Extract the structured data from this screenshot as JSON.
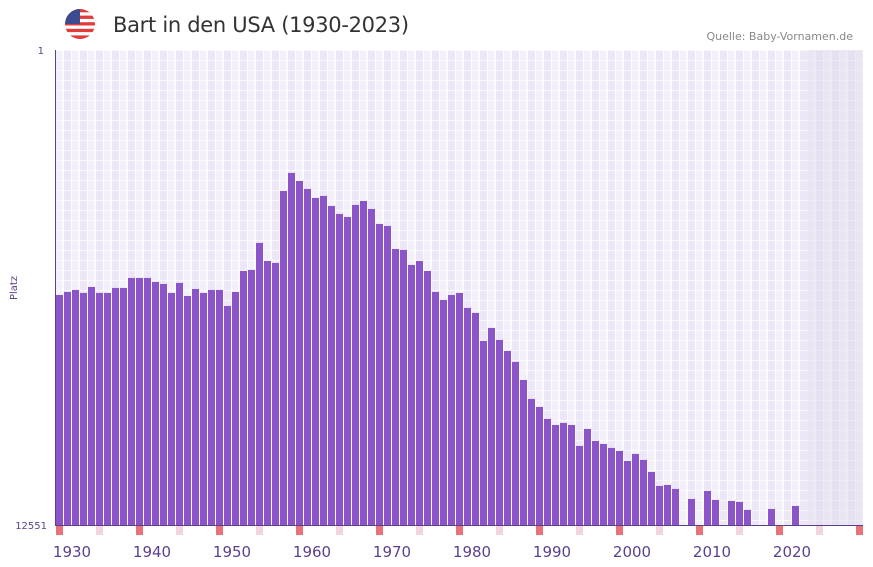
{
  "header": {
    "title": "Bart in den USA (1930-2023)",
    "source": "Quelle: Baby-Vornamen.de",
    "flag_icon": "us-flag-icon"
  },
  "colors": {
    "bar": "#8c55c7",
    "axis": "#5b3f8c",
    "marker_strong": "#e8737a",
    "marker_light": "#f3d5de",
    "forecast_shade": "#e2dded"
  },
  "chart_data": {
    "type": "bar",
    "title": "Bart in den USA (1930-2023)",
    "xlabel": "",
    "ylabel": "Platz",
    "y_top_label": "1",
    "y_bottom_label": "12551",
    "ylim": [
      1,
      12551
    ],
    "y_inverted": true,
    "xlim": [
      1930,
      2030
    ],
    "x_tick_labels": [
      "1930",
      "1940",
      "1950",
      "1960",
      "1970",
      "1980",
      "1990",
      "2000",
      "2010",
      "2020"
    ],
    "shaded_after_year": 2023,
    "grid": true,
    "years": [
      1930,
      1931,
      1932,
      1933,
      1934,
      1935,
      1936,
      1937,
      1938,
      1939,
      1940,
      1941,
      1942,
      1943,
      1944,
      1945,
      1946,
      1947,
      1948,
      1949,
      1950,
      1951,
      1952,
      1953,
      1954,
      1955,
      1956,
      1957,
      1958,
      1959,
      1960,
      1961,
      1962,
      1963,
      1964,
      1965,
      1966,
      1967,
      1968,
      1969,
      1970,
      1971,
      1972,
      1973,
      1974,
      1975,
      1976,
      1977,
      1978,
      1979,
      1980,
      1981,
      1982,
      1983,
      1984,
      1985,
      1986,
      1987,
      1988,
      1989,
      1990,
      1991,
      1992,
      1993,
      1994,
      1995,
      1996,
      1997,
      1998,
      1999,
      2000,
      2001,
      2002,
      2003,
      2004,
      2005,
      2006,
      2007,
      2008,
      2009,
      2010,
      2011,
      2012,
      2013,
      2014,
      2015,
      2016,
      2017,
      2018,
      2019,
      2020,
      2021,
      2022,
      2023
    ],
    "ranks": [
      6474,
      6394,
      6341,
      6420,
      6262,
      6420,
      6420,
      6288,
      6288,
      6024,
      6024,
      6024,
      6129,
      6183,
      6420,
      6156,
      6500,
      6315,
      6420,
      6341,
      6341,
      6764,
      6394,
      5839,
      5812,
      5099,
      5575,
      5628,
      3725,
      3250,
      3461,
      3672,
      3910,
      3857,
      4122,
      4333,
      4412,
      4095,
      3989,
      4201,
      4597,
      4650,
      5258,
      5284,
      5680,
      5575,
      5839,
      6394,
      6605,
      6474,
      6420,
      6816,
      6948,
      7688,
      7345,
      7662,
      7952,
      8243,
      8719,
      9221,
      9432,
      9749,
      9908,
      9855,
      9908,
      10462,
      10013,
      10330,
      10410,
      10515,
      10594,
      10859,
      10674,
      10832,
      11149,
      11519,
      11493,
      11598,
      null,
      11863,
      null,
      11651,
      11889,
      null,
      11915,
      11942,
      12153,
      null,
      null,
      12127,
      null,
      null,
      12048,
      null
    ]
  }
}
